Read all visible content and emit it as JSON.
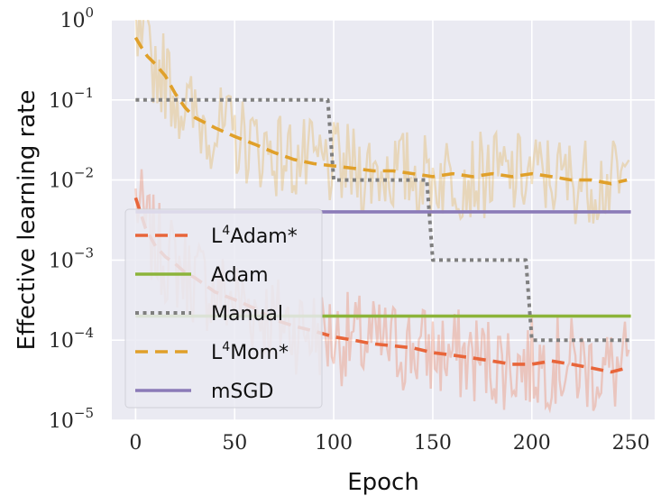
{
  "chart_data": {
    "type": "line",
    "xlabel": "Epoch",
    "ylabel": "Effective learning rate",
    "x_ticks": [
      0,
      50,
      100,
      150,
      200,
      250
    ],
    "y_ticks": [
      {
        "value": 1,
        "base": "10",
        "exp": "0"
      },
      {
        "value": 0.1,
        "base": "10",
        "exp": "−1"
      },
      {
        "value": 0.01,
        "base": "10",
        "exp": "−2"
      },
      {
        "value": 0.001,
        "base": "10",
        "exp": "−3"
      },
      {
        "value": 0.0001,
        "base": "10",
        "exp": "−4"
      },
      {
        "value": 1e-05,
        "base": "10",
        "exp": "−5"
      }
    ],
    "y_scale": "log",
    "xlim": [
      -12,
      262
    ],
    "ylim": [
      1e-05,
      1
    ],
    "grid": true,
    "legend_position": "center-left",
    "colors": {
      "background": "#eaeaf2",
      "grid": "#ffffff",
      "l4adam": "#e8653a",
      "adam": "#8cb43a",
      "manual": "#7f7f7f",
      "l4mom": "#e0a02a",
      "msgd": "#8b7bb8"
    },
    "series": [
      {
        "name_main": "L",
        "name_sup": "4",
        "name_rest": "Adam*",
        "key": "l4adam",
        "style": "dashed",
        "x": [
          0,
          5,
          10,
          15,
          20,
          25,
          30,
          40,
          50,
          60,
          70,
          80,
          90,
          100,
          110,
          120,
          130,
          140,
          150,
          160,
          170,
          180,
          190,
          200,
          210,
          220,
          230,
          240,
          248
        ],
        "y": [
          0.006,
          0.0025,
          0.0015,
          0.0011,
          0.0009,
          0.0007,
          0.0006,
          0.0004,
          0.00032,
          0.00025,
          0.00018,
          0.00015,
          0.00013,
          0.00011,
          0.0001,
          9e-05,
          8.5e-05,
          8e-05,
          7e-05,
          6.5e-05,
          6e-05,
          5.5e-05,
          5e-05,
          5e-05,
          5.5e-05,
          5e-05,
          4.5e-05,
          4e-05,
          4.5e-05
        ]
      },
      {
        "name_main": "Adam",
        "name_sup": "",
        "name_rest": "",
        "key": "adam",
        "style": "solid",
        "x": [
          0,
          250
        ],
        "y": [
          0.0002,
          0.0002
        ]
      },
      {
        "name_main": "Manual",
        "name_sup": "",
        "name_rest": "",
        "key": "manual",
        "style": "dotted",
        "x": [
          0,
          97,
          100,
          147,
          150,
          197,
          200,
          250
        ],
        "y": [
          0.1,
          0.1,
          0.01,
          0.01,
          0.001,
          0.001,
          0.0001,
          0.0001
        ]
      },
      {
        "name_main": "L",
        "name_sup": "4",
        "name_rest": "Mom*",
        "key": "l4mom",
        "style": "dashed",
        "x": [
          0,
          3,
          6,
          10,
          15,
          20,
          25,
          30,
          40,
          50,
          60,
          70,
          80,
          90,
          100,
          110,
          120,
          130,
          140,
          150,
          160,
          170,
          180,
          190,
          200,
          210,
          220,
          230,
          240,
          248
        ],
        "y": [
          0.6,
          0.45,
          0.35,
          0.28,
          0.2,
          0.12,
          0.08,
          0.06,
          0.045,
          0.035,
          0.028,
          0.022,
          0.018,
          0.016,
          0.015,
          0.014,
          0.013,
          0.013,
          0.012,
          0.011,
          0.012,
          0.011,
          0.012,
          0.011,
          0.012,
          0.011,
          0.01,
          0.01,
          0.009,
          0.01
        ]
      },
      {
        "name_main": "mSGD",
        "name_sup": "",
        "name_rest": "",
        "key": "msgd",
        "style": "solid",
        "x": [
          0,
          250
        ],
        "y": [
          0.004,
          0.004
        ]
      }
    ]
  }
}
